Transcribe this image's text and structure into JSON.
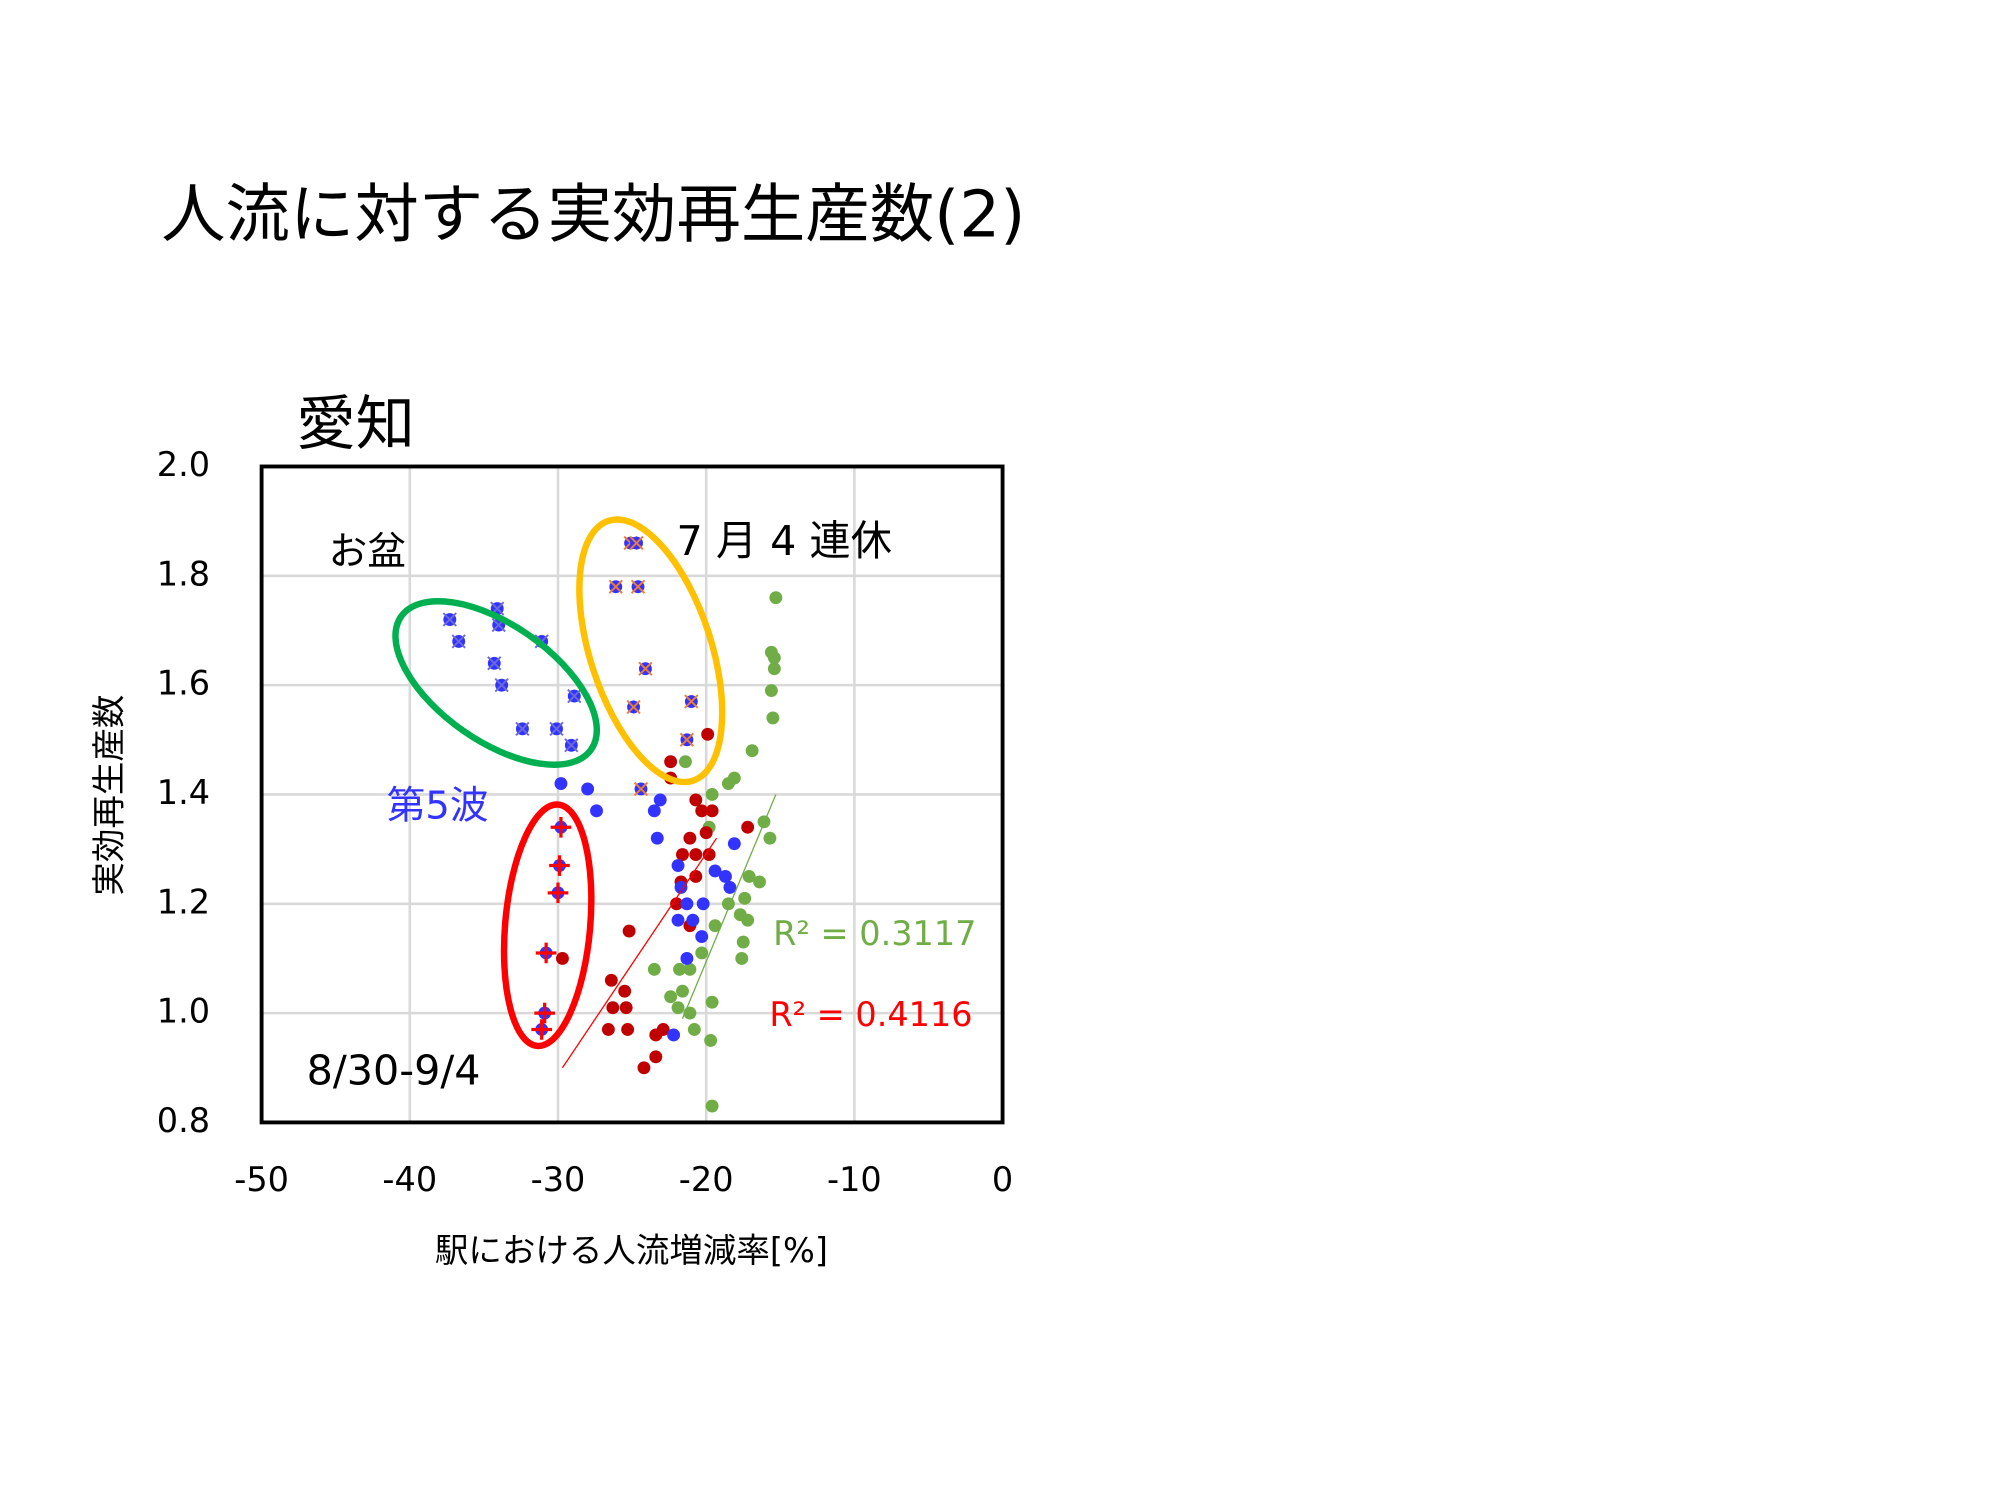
{
  "slide_title": "人流に対する実効再生産数(2)",
  "chart_data": {
    "type": "scatter",
    "title": "愛知",
    "x_label": "駅における人流増減率[%]",
    "y_label": "実効再生産数",
    "xlim": [
      -50,
      0
    ],
    "ylim": [
      0.8,
      2.0
    ],
    "xticks": [
      -50,
      -40,
      -30,
      -20,
      -10,
      0
    ],
    "yticks": [
      0.8,
      {
        "value": 1.0,
        "label": "1.0"
      },
      1.2,
      1.4,
      1.6,
      1.8,
      {
        "value": 2.0,
        "label": "2.0"
      }
    ],
    "grid": true,
    "series": [
      {
        "color": "#70ad47",
        "marker": "circle",
        "x": [
          -15.3,
          -15.6,
          -15.4,
          -15.4,
          -15.6,
          -15.5,
          -16.9,
          -18.1,
          -18.5,
          -19.6,
          -21.4,
          -16.1,
          -15.7,
          -19.8,
          -16.4,
          -17.1,
          -17.4,
          -17.7,
          -17.2,
          -17.5,
          -17.6,
          -18.5,
          -19.4,
          -20.3,
          -21.1,
          -21.8,
          -22.4,
          -21.9,
          -21.1,
          -20.8,
          -19.6,
          -19.7,
          -19.6,
          -23.5,
          -21.6
        ],
        "values": [
          1.76,
          1.66,
          1.63,
          1.65,
          1.59,
          1.54,
          1.48,
          1.43,
          1.42,
          1.4,
          1.46,
          1.35,
          1.32,
          1.34,
          1.24,
          1.25,
          1.21,
          1.18,
          1.17,
          1.13,
          1.1,
          1.2,
          1.16,
          1.11,
          1.08,
          1.08,
          1.03,
          1.01,
          1.0,
          0.97,
          1.02,
          0.95,
          0.83,
          1.08,
          1.04
        ]
      },
      {
        "color": "#c00000",
        "marker": "circle",
        "x": [
          -19.9,
          -22.4,
          -22.4,
          -20.7,
          -20.3,
          -19.6,
          -21.1,
          -20.0,
          -21.6,
          -20.7,
          -19.8,
          -21.7,
          -20.7,
          -22.0,
          -21.1,
          -25.2,
          -26.4,
          -25.5,
          -26.3,
          -25.4,
          -26.6,
          -25.3,
          -23.4,
          -22.9,
          -23.4,
          -24.2,
          -29.7,
          -17.2
        ],
        "values": [
          1.51,
          1.46,
          1.43,
          1.39,
          1.37,
          1.37,
          1.32,
          1.33,
          1.29,
          1.29,
          1.29,
          1.24,
          1.25,
          1.2,
          1.16,
          1.15,
          1.06,
          1.04,
          1.01,
          1.01,
          0.97,
          0.97,
          0.96,
          0.97,
          0.92,
          0.9,
          1.1,
          1.34
        ]
      },
      {
        "color": "#3333ff",
        "marker": "circle",
        "x": [
          -29.8,
          -28.0,
          -27.4,
          -23.1,
          -23.5,
          -23.3,
          -21.9,
          -21.7,
          -21.9,
          -20.9,
          -20.2,
          -19.4,
          -18.4,
          -18.1,
          -20.3,
          -21.3,
          -22.2,
          -21.3,
          -18.7
        ],
        "values": [
          1.42,
          1.41,
          1.37,
          1.39,
          1.37,
          1.32,
          1.27,
          1.23,
          1.17,
          1.17,
          1.2,
          1.26,
          1.23,
          1.31,
          1.14,
          1.1,
          0.96,
          1.2,
          1.25
        ]
      },
      {
        "color": "#3333ff",
        "marker": "circle-x",
        "marker_color": "#6b6bd6",
        "x": [
          -37.3,
          -36.7,
          -34.1,
          -34.0,
          -34.3,
          -33.8,
          -31.1,
          -32.4,
          -30.1,
          -28.9,
          -29.1
        ],
        "values": [
          1.72,
          1.68,
          1.74,
          1.71,
          1.64,
          1.6,
          1.68,
          1.52,
          1.52,
          1.58,
          1.49
        ]
      },
      {
        "color": "#3333ff",
        "marker": "circle-x",
        "marker_color": "#ed7d31",
        "x": [
          -25.1,
          -24.7,
          -26.1,
          -24.6,
          -24.1,
          -24.9,
          -21.0,
          -21.3,
          -24.4
        ],
        "values": [
          1.86,
          1.86,
          1.78,
          1.78,
          1.63,
          1.56,
          1.57,
          1.5,
          1.41
        ]
      },
      {
        "color": "#3333ff",
        "marker": "circle-plus",
        "marker_color": "#ff0000",
        "x": [
          -29.8,
          -29.9,
          -30.0,
          -30.8,
          -30.9,
          -31.1
        ],
        "values": [
          1.34,
          1.27,
          1.22,
          1.11,
          1.0,
          0.97
        ]
      }
    ],
    "trendlines": [
      {
        "color": "#70ad47",
        "x": [
          -21.6,
          -15.3
        ],
        "values": [
          0.99,
          1.4
        ],
        "label": "R² = 0.3117"
      },
      {
        "color": "#ff0000",
        "x": [
          -29.7,
          -19.3
        ],
        "values": [
          0.9,
          1.32
        ],
        "label": "R² = 0.4116"
      }
    ],
    "annotations": [
      {
        "text": "お盆",
        "color": "#000000"
      },
      {
        "text": "7 月 4 連休",
        "color": "#000000"
      },
      {
        "text": "第5波",
        "color": "#3333ff"
      },
      {
        "text": "8/30-9/4",
        "color": "#000000"
      }
    ]
  }
}
